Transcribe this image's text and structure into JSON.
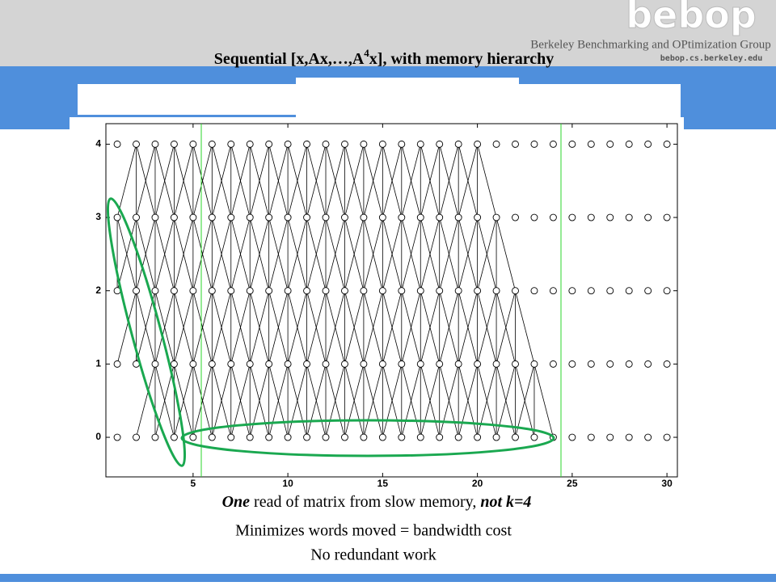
{
  "header": {
    "title_pre": "Sequential [x,Ax,…,A",
    "title_sup": "4",
    "title_post": "x], with memory hierarchy"
  },
  "logo": {
    "mark": "bebop",
    "group": "Berkeley Benchmarking and OPtimization Group",
    "url": "bebop.cs.berkeley.edu"
  },
  "plot": {
    "xlim": [
      0.4,
      30.55
    ],
    "ylim": [
      -0.54,
      4.28
    ],
    "xticks": [
      5,
      10,
      15,
      20,
      25,
      30
    ],
    "yticks": [
      0,
      1,
      2,
      3,
      4
    ]
  },
  "caption": {
    "line1_a": "One",
    "line1_b": " read of matrix from slow memory, ",
    "line1_c": "not k=4",
    "line2": "Minimizes words moved = bandwidth cost",
    "line3": "No redundant work"
  }
}
